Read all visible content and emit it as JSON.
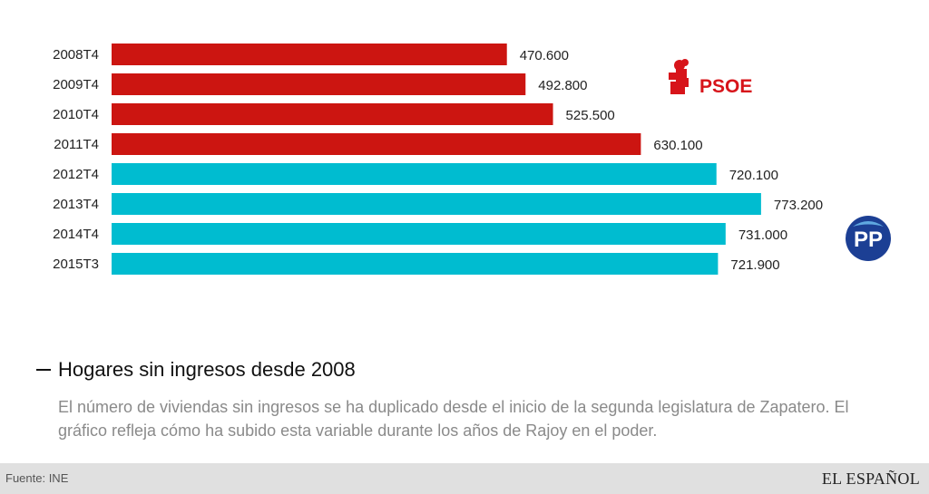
{
  "chart_data": {
    "type": "bar",
    "orientation": "horizontal",
    "categories": [
      "2008T4",
      "2009T4",
      "2010T4",
      "2011T4",
      "2012T4",
      "2013T4",
      "2014T4",
      "2015T3"
    ],
    "values": [
      470600,
      492800,
      525500,
      630100,
      720100,
      773200,
      731000,
      721900
    ],
    "value_labels": [
      "470.600",
      "492.800",
      "525.500",
      "630.100",
      "720.100",
      "773.200",
      "731.000",
      "721.900"
    ],
    "party": [
      "PSOE",
      "PSOE",
      "PSOE",
      "PSOE",
      "PP",
      "PP",
      "PP",
      "PP"
    ],
    "colors": {
      "PSOE": "#cc1511",
      "PP": "#00bcd0"
    },
    "xlim": [
      0,
      850000
    ],
    "title": "Hogares sin ingresos desde 2008",
    "subtitle": "El número de viviendas sin ingresos se ha duplicado desde el inicio de la segunda legislatura de Zapatero. El gráfico refleja cómo ha subido esta variable durante los años de Rajoy en el poder."
  },
  "logos": {
    "psoe": {
      "icon": "rose-fist-icon",
      "text": "PSOE",
      "color": "#d7141a"
    },
    "pp": {
      "icon": "pp-seagull-icon",
      "text": "PP",
      "color": "#1c3f94"
    }
  },
  "footer": {
    "source": "Fuente: INE",
    "brand": "EL ESPAÑOL"
  }
}
